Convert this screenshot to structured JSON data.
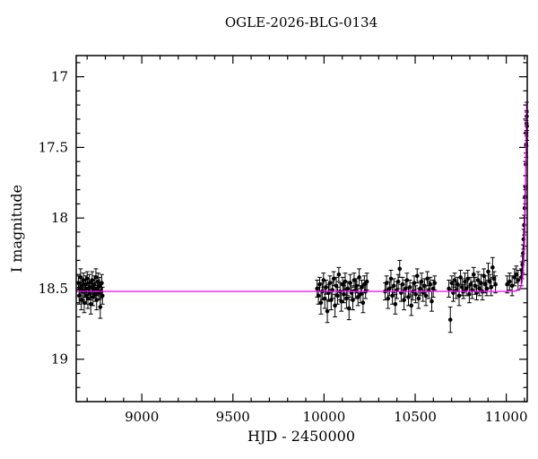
{
  "title": "OGLE-2026-BLG-0134",
  "chart_data": {
    "type": "scatter",
    "title": "OGLE-2026-BLG-0134",
    "xlabel": "HJD - 2450000",
    "ylabel": "I magnitude",
    "xlim": [
      8640,
      11115
    ],
    "ylim": [
      19.3,
      16.85
    ],
    "x_major_ticks": [
      9000,
      9500,
      10000,
      10500,
      11000
    ],
    "x_minor_step": 100,
    "y_major_ticks": [
      17,
      17.5,
      18,
      18.5,
      19
    ],
    "y_minor_step": 0.1,
    "grid": false,
    "legend": "none",
    "point_color": "#000000",
    "model_color": "#ff00ff",
    "model": {
      "type": "paczynski",
      "I0": 18.52,
      "t0": 11112,
      "tE": 13,
      "u0": 0.3
    },
    "points": [
      [
        8652,
        18.46,
        0.05
      ],
      [
        8656,
        18.55,
        0.06
      ],
      [
        8660,
        18.5,
        0.05
      ],
      [
        8664,
        18.42,
        0.06
      ],
      [
        8668,
        18.58,
        0.07
      ],
      [
        8672,
        18.48,
        0.05
      ],
      [
        8676,
        18.52,
        0.06
      ],
      [
        8680,
        18.44,
        0.05
      ],
      [
        8684,
        18.6,
        0.07
      ],
      [
        8688,
        18.51,
        0.05
      ],
      [
        8692,
        18.47,
        0.06
      ],
      [
        8696,
        18.55,
        0.06
      ],
      [
        8700,
        18.43,
        0.05
      ],
      [
        8704,
        18.57,
        0.07
      ],
      [
        8708,
        18.5,
        0.05
      ],
      [
        8712,
        18.46,
        0.06
      ],
      [
        8716,
        18.53,
        0.05
      ],
      [
        8720,
        18.61,
        0.07
      ],
      [
        8724,
        18.49,
        0.05
      ],
      [
        8728,
        18.44,
        0.06
      ],
      [
        8732,
        18.56,
        0.06
      ],
      [
        8736,
        18.51,
        0.05
      ],
      [
        8740,
        18.47,
        0.06
      ],
      [
        8744,
        18.54,
        0.05
      ],
      [
        8748,
        18.42,
        0.06
      ],
      [
        8752,
        18.58,
        0.07
      ],
      [
        8756,
        18.5,
        0.05
      ],
      [
        8760,
        18.45,
        0.06
      ],
      [
        8764,
        18.53,
        0.05
      ],
      [
        8768,
        18.48,
        0.06
      ],
      [
        8772,
        18.63,
        0.08
      ],
      [
        8776,
        18.52,
        0.05
      ],
      [
        8780,
        18.46,
        0.06
      ],
      [
        8784,
        18.55,
        0.06
      ],
      [
        9962,
        18.5,
        0.06
      ],
      [
        9969,
        18.55,
        0.06
      ],
      [
        9976,
        18.47,
        0.05
      ],
      [
        9983,
        18.6,
        0.08
      ],
      [
        9990,
        18.52,
        0.06
      ],
      [
        9997,
        18.44,
        0.05
      ],
      [
        10004,
        18.57,
        0.07
      ],
      [
        10011,
        18.49,
        0.05
      ],
      [
        10018,
        18.66,
        0.08
      ],
      [
        10025,
        18.53,
        0.06
      ],
      [
        10032,
        18.46,
        0.05
      ],
      [
        10039,
        18.58,
        0.07
      ],
      [
        10046,
        18.51,
        0.06
      ],
      [
        10053,
        18.43,
        0.05
      ],
      [
        10060,
        18.62,
        0.08
      ],
      [
        10067,
        18.48,
        0.06
      ],
      [
        10074,
        18.55,
        0.06
      ],
      [
        10081,
        18.4,
        0.05
      ],
      [
        10088,
        18.52,
        0.06
      ],
      [
        10095,
        18.59,
        0.07
      ],
      [
        10102,
        18.47,
        0.05
      ],
      [
        10109,
        18.54,
        0.06
      ],
      [
        10116,
        18.45,
        0.06
      ],
      [
        10123,
        18.57,
        0.07
      ],
      [
        10130,
        18.5,
        0.05
      ],
      [
        10137,
        18.64,
        0.08
      ],
      [
        10144,
        18.46,
        0.06
      ],
      [
        10151,
        18.53,
        0.05
      ],
      [
        10158,
        18.58,
        0.07
      ],
      [
        10165,
        18.44,
        0.05
      ],
      [
        10172,
        18.51,
        0.06
      ],
      [
        10179,
        18.48,
        0.05
      ],
      [
        10186,
        18.56,
        0.06
      ],
      [
        10193,
        18.42,
        0.06
      ],
      [
        10200,
        18.54,
        0.06
      ],
      [
        10207,
        18.49,
        0.05
      ],
      [
        10214,
        18.6,
        0.07
      ],
      [
        10221,
        18.47,
        0.06
      ],
      [
        10228,
        18.52,
        0.05
      ],
      [
        10235,
        18.45,
        0.06
      ],
      [
        10335,
        18.52,
        0.06
      ],
      [
        10343,
        18.46,
        0.05
      ],
      [
        10351,
        18.57,
        0.07
      ],
      [
        10359,
        18.5,
        0.05
      ],
      [
        10367,
        18.43,
        0.06
      ],
      [
        10375,
        18.55,
        0.06
      ],
      [
        10383,
        18.48,
        0.05
      ],
      [
        10391,
        18.61,
        0.07
      ],
      [
        10399,
        18.51,
        0.06
      ],
      [
        10407,
        18.45,
        0.05
      ],
      [
        10415,
        18.36,
        0.06
      ],
      [
        10423,
        18.53,
        0.06
      ],
      [
        10431,
        18.47,
        0.05
      ],
      [
        10439,
        18.58,
        0.07
      ],
      [
        10447,
        18.5,
        0.06
      ],
      [
        10455,
        18.44,
        0.05
      ],
      [
        10463,
        18.56,
        0.06
      ],
      [
        10471,
        18.49,
        0.05
      ],
      [
        10479,
        18.62,
        0.07
      ],
      [
        10487,
        18.52,
        0.06
      ],
      [
        10495,
        18.46,
        0.05
      ],
      [
        10503,
        18.54,
        0.06
      ],
      [
        10511,
        18.41,
        0.05
      ],
      [
        10519,
        18.57,
        0.07
      ],
      [
        10527,
        18.5,
        0.05
      ],
      [
        10535,
        18.45,
        0.06
      ],
      [
        10543,
        18.53,
        0.06
      ],
      [
        10551,
        18.48,
        0.05
      ],
      [
        10559,
        18.55,
        0.07
      ],
      [
        10567,
        18.43,
        0.05
      ],
      [
        10575,
        18.51,
        0.06
      ],
      [
        10583,
        18.47,
        0.05
      ],
      [
        10591,
        18.59,
        0.07
      ],
      [
        10599,
        18.5,
        0.06
      ],
      [
        10607,
        18.46,
        0.05
      ],
      [
        10685,
        18.5,
        0.06
      ],
      [
        10693,
        18.72,
        0.09
      ],
      [
        10701,
        18.46,
        0.05
      ],
      [
        10709,
        18.53,
        0.06
      ],
      [
        10717,
        18.44,
        0.05
      ],
      [
        10725,
        18.51,
        0.06
      ],
      [
        10733,
        18.47,
        0.05
      ],
      [
        10741,
        18.55,
        0.07
      ],
      [
        10749,
        18.42,
        0.05
      ],
      [
        10757,
        18.49,
        0.06
      ],
      [
        10765,
        18.52,
        0.05
      ],
      [
        10773,
        18.45,
        0.06
      ],
      [
        10781,
        18.5,
        0.05
      ],
      [
        10789,
        18.43,
        0.06
      ],
      [
        10797,
        18.54,
        0.06
      ],
      [
        10805,
        18.47,
        0.05
      ],
      [
        10813,
        18.51,
        0.06
      ],
      [
        10821,
        18.4,
        0.05
      ],
      [
        10829,
        18.48,
        0.06
      ],
      [
        10837,
        18.53,
        0.05
      ],
      [
        10845,
        18.44,
        0.06
      ],
      [
        10853,
        18.5,
        0.05
      ],
      [
        10861,
        18.46,
        0.06
      ],
      [
        10869,
        18.52,
        0.06
      ],
      [
        10877,
        18.41,
        0.05
      ],
      [
        10885,
        18.47,
        0.06
      ],
      [
        10893,
        18.5,
        0.05
      ],
      [
        10901,
        18.38,
        0.06
      ],
      [
        10909,
        18.45,
        0.05
      ],
      [
        10917,
        18.49,
        0.06
      ],
      [
        10925,
        18.35,
        0.07
      ],
      [
        10933,
        18.43,
        0.05
      ],
      [
        10941,
        18.47,
        0.06
      ],
      [
        11005,
        18.47,
        0.06
      ],
      [
        11018,
        18.45,
        0.06
      ],
      [
        11032,
        18.48,
        0.07
      ],
      [
        11045,
        18.42,
        0.06
      ],
      [
        11055,
        18.4,
        0.06
      ],
      [
        11065,
        18.44,
        0.07
      ],
      [
        11082,
        18.42,
        0.06
      ],
      [
        11086,
        18.37,
        0.06
      ],
      [
        11089,
        18.33,
        0.06
      ],
      [
        11092,
        18.25,
        0.06
      ],
      [
        11095,
        18.15,
        0.07
      ],
      [
        11098,
        18.05,
        0.07
      ],
      [
        11101,
        17.93,
        0.07
      ],
      [
        11103,
        17.85,
        0.08
      ],
      [
        11105,
        17.78,
        0.08
      ],
      [
        11107,
        17.62,
        0.08
      ],
      [
        11109,
        17.48,
        0.09
      ],
      [
        11110,
        17.4,
        0.09
      ],
      [
        11111,
        17.33,
        0.09
      ],
      [
        11112,
        17.28,
        0.1
      ],
      [
        11113,
        17.35,
        0.1
      ]
    ]
  }
}
